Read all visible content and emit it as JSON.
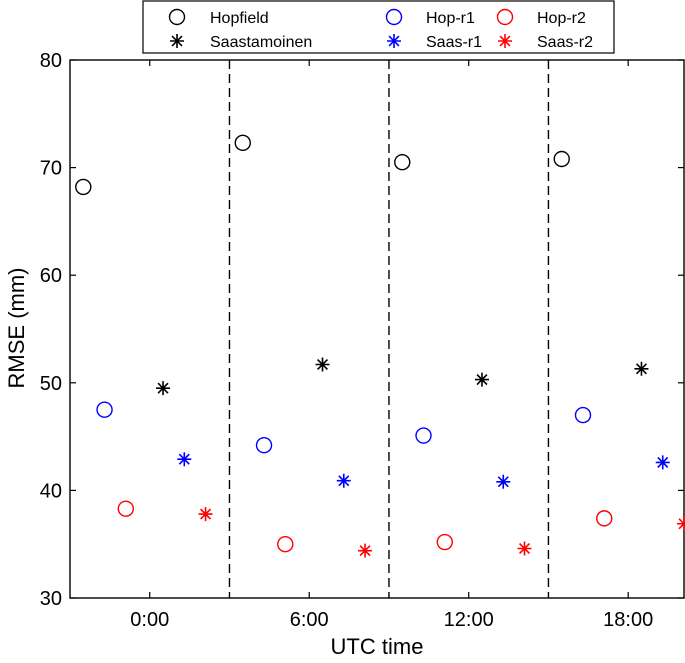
{
  "chart_data": {
    "type": "scatter",
    "xlabel": "UTC time",
    "ylabel": "RMSE (mm)",
    "ylim": [
      30,
      80
    ],
    "yticks": [
      30,
      40,
      50,
      60,
      70,
      80
    ],
    "categories": [
      "0:00",
      "6:00",
      "12:00",
      "18:00"
    ],
    "grid": false,
    "legend_placement": "top",
    "series": [
      {
        "name": "Hopfield",
        "marker": "circle",
        "color": "#000000",
        "values": [
          68.2,
          72.3,
          70.5,
          70.8
        ]
      },
      {
        "name": "Saastamoinen",
        "marker": "star",
        "color": "#000000",
        "values": [
          49.5,
          51.7,
          50.3,
          51.3
        ]
      },
      {
        "name": "Hop-r1",
        "marker": "circle",
        "color": "#0000ff",
        "values": [
          47.5,
          44.2,
          45.1,
          47.0
        ]
      },
      {
        "name": "Saas-r1",
        "marker": "star",
        "color": "#0000ff",
        "values": [
          42.9,
          40.9,
          40.8,
          42.6
        ]
      },
      {
        "name": "Hop-r2",
        "marker": "circle",
        "color": "#ff0000",
        "values": [
          38.3,
          35.0,
          35.2,
          37.4
        ]
      },
      {
        "name": "Saas-r2",
        "marker": "star",
        "color": "#ff0000",
        "values": [
          37.8,
          34.4,
          34.6,
          36.9
        ]
      }
    ]
  }
}
